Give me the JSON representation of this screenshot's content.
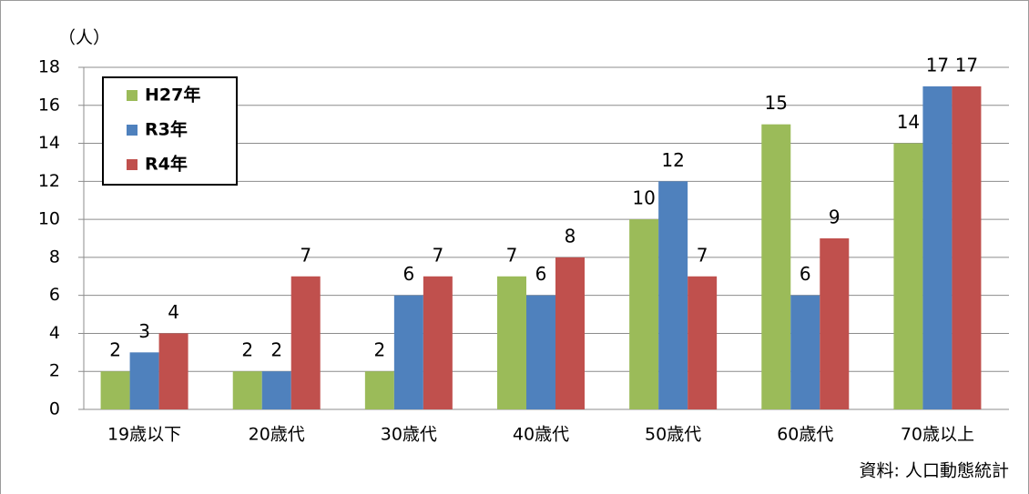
{
  "chart_data": {
    "type": "bar",
    "y_label": "（人）",
    "source": "資料: 人口動態統計",
    "categories": [
      "19歳以下",
      "20歳代",
      "30歳代",
      "40歳代",
      "50歳代",
      "60歳代",
      "70歳以上"
    ],
    "series": [
      {
        "name": "H27年",
        "color": "#9bbb59",
        "values": [
          2,
          2,
          2,
          7,
          10,
          15,
          14
        ]
      },
      {
        "name": "R3年",
        "color": "#4f81bd",
        "values": [
          3,
          2,
          6,
          6,
          12,
          6,
          17
        ]
      },
      {
        "name": "R4年",
        "color": "#c0504d",
        "values": [
          4,
          7,
          7,
          8,
          7,
          9,
          17
        ]
      }
    ],
    "ylim": [
      0,
      18
    ],
    "yticks": [
      0,
      2,
      4,
      6,
      8,
      10,
      12,
      14,
      16,
      18
    ],
    "grid": true,
    "legend": "top-left"
  }
}
